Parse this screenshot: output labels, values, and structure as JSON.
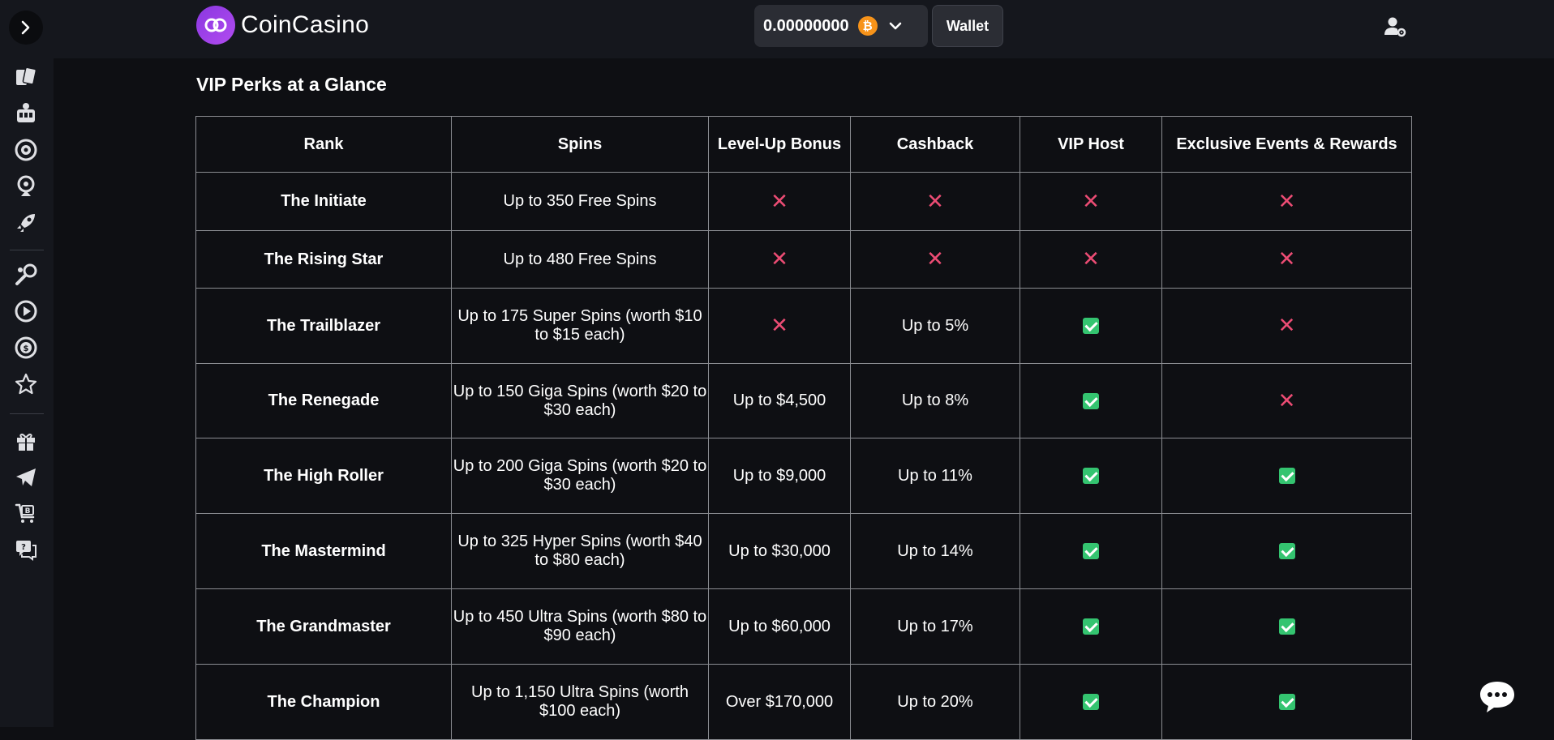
{
  "brand": {
    "name": "CoinCasino"
  },
  "header": {
    "balance": "0.00000000",
    "currency_symbol": "₿",
    "wallet_label": "Wallet"
  },
  "sidebar": {
    "icons": [
      "cards-icon",
      "slot-machine-icon",
      "roulette-icon",
      "wheel-icon",
      "rocket-icon",
      "sports-icon",
      "play-icon",
      "coin-icon",
      "star-icon",
      "gift-icon",
      "telegram-icon",
      "buy-crypto-icon",
      "support-icon"
    ]
  },
  "page": {
    "heading": "VIP Perks at a Glance"
  },
  "table": {
    "headers": [
      "Rank",
      "Spins",
      "Level-Up Bonus",
      "Cashback",
      "VIP Host",
      "Exclusive Events & Rewards"
    ],
    "rows": [
      {
        "rank": "The Initiate",
        "spins": "Up to 350 Free Spins",
        "bonus": "✕",
        "cashback": "✕",
        "host": "✕",
        "events": "✕"
      },
      {
        "rank": "The Rising Star",
        "spins": "Up to 480 Free Spins",
        "bonus": "✕",
        "cashback": "✕",
        "host": "✕",
        "events": "✕"
      },
      {
        "rank": "The Trailblazer",
        "spins": "Up to 175 Super Spins (worth $10 to $15 each)",
        "bonus": "✕",
        "cashback": "Up to 5%",
        "host": "✓",
        "events": "✕"
      },
      {
        "rank": "The Renegade",
        "spins": "Up to 150 Giga Spins (worth $20 to $30 each)",
        "bonus": "Up to $4,500",
        "cashback": "Up to 8%",
        "host": "✓",
        "events": "✕"
      },
      {
        "rank": "The High Roller",
        "spins": "Up to 200 Giga Spins (worth $20 to $30 each)",
        "bonus": "Up to $9,000",
        "cashback": "Up to 11%",
        "host": "✓",
        "events": "✓"
      },
      {
        "rank": "The Mastermind",
        "spins": "Up to 325 Hyper Spins (worth $40 to $80 each)",
        "bonus": "Up to $30,000",
        "cashback": "Up to 14%",
        "host": "✓",
        "events": "✓"
      },
      {
        "rank": "The Grandmaster",
        "spins": "Up to 450 Ultra Spins (worth $80 to $90 each)",
        "bonus": "Up to $60,000",
        "cashback": "Up to 17%",
        "host": "✓",
        "events": "✓"
      },
      {
        "rank": "The Champion",
        "spins": "Up to 1,150 Ultra Spins (worth $100 each)",
        "bonus": "Over $170,000",
        "cashback": "Up to 20%",
        "host": "✓",
        "events": "✓"
      }
    ]
  },
  "colors": {
    "cross": "#ec4c74",
    "check": "#34c470",
    "brand": "#9b3fe8"
  }
}
